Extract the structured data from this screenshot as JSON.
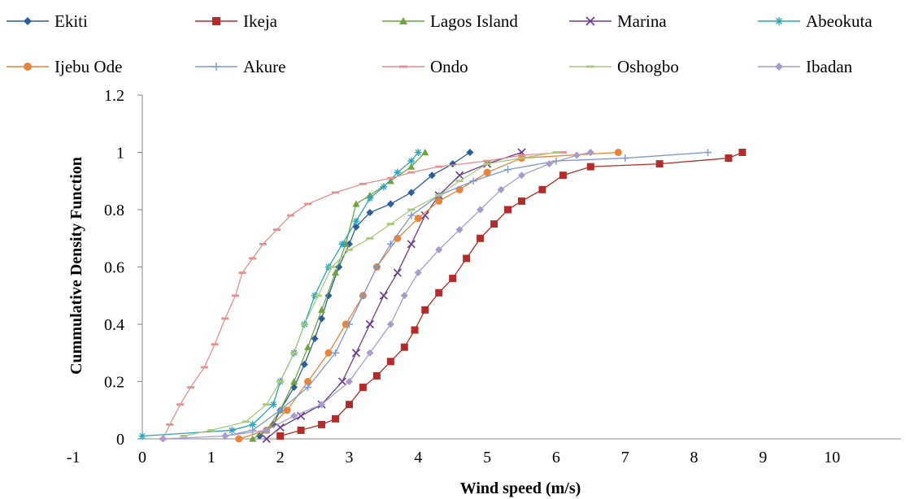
{
  "chart_data": {
    "type": "line",
    "title": "",
    "xlabel": "Wind speed (m/s)",
    "ylabel": "Cummulative Density Function",
    "xlim": [
      -1,
      10
    ],
    "ylim": [
      0,
      1.2
    ],
    "xticks": [
      "-1",
      "0",
      "1",
      "2",
      "3",
      "4",
      "5",
      "6",
      "7",
      "8",
      "9",
      "10"
    ],
    "yticks": [
      "0",
      "0.2",
      "0.4",
      "0.6",
      "0.8",
      "1",
      "1.2"
    ],
    "legend_position": "top",
    "grid": false,
    "series": [
      {
        "name": "Ekiti",
        "color": "#2e5c9a",
        "marker": "diamond",
        "points": [
          [
            1.7,
            0.01
          ],
          [
            1.9,
            0.05
          ],
          [
            2.0,
            0.1
          ],
          [
            2.2,
            0.18
          ],
          [
            2.35,
            0.26
          ],
          [
            2.5,
            0.35
          ],
          [
            2.6,
            0.42
          ],
          [
            2.7,
            0.5
          ],
          [
            2.85,
            0.6
          ],
          [
            3.0,
            0.68
          ],
          [
            3.1,
            0.74
          ],
          [
            3.3,
            0.79
          ],
          [
            3.6,
            0.82
          ],
          [
            3.9,
            0.86
          ],
          [
            4.2,
            0.92
          ],
          [
            4.5,
            0.96
          ],
          [
            4.75,
            1.0
          ]
        ]
      },
      {
        "name": "Ikeja",
        "color": "#b22c2c",
        "marker": "square",
        "points": [
          [
            2.0,
            0.01
          ],
          [
            2.3,
            0.03
          ],
          [
            2.6,
            0.05
          ],
          [
            2.8,
            0.07
          ],
          [
            3.0,
            0.12
          ],
          [
            3.2,
            0.18
          ],
          [
            3.4,
            0.22
          ],
          [
            3.6,
            0.27
          ],
          [
            3.8,
            0.32
          ],
          [
            3.95,
            0.38
          ],
          [
            4.1,
            0.45
          ],
          [
            4.3,
            0.51
          ],
          [
            4.5,
            0.56
          ],
          [
            4.7,
            0.63
          ],
          [
            4.9,
            0.7
          ],
          [
            5.1,
            0.75
          ],
          [
            5.3,
            0.8
          ],
          [
            5.5,
            0.83
          ],
          [
            5.8,
            0.87
          ],
          [
            6.1,
            0.92
          ],
          [
            6.5,
            0.95
          ],
          [
            7.5,
            0.96
          ],
          [
            8.5,
            0.98
          ],
          [
            8.7,
            1.0
          ]
        ]
      },
      {
        "name": "Lagos Island",
        "color": "#6ea33f",
        "marker": "triangle",
        "points": [
          [
            1.6,
            0.0
          ],
          [
            1.8,
            0.03
          ],
          [
            2.0,
            0.1
          ],
          [
            2.2,
            0.2
          ],
          [
            2.4,
            0.32
          ],
          [
            2.6,
            0.45
          ],
          [
            2.8,
            0.58
          ],
          [
            2.95,
            0.68
          ],
          [
            3.1,
            0.82
          ],
          [
            3.3,
            0.85
          ],
          [
            3.6,
            0.9
          ],
          [
            3.9,
            0.95
          ],
          [
            4.1,
            1.0
          ]
        ]
      },
      {
        "name": "Marina",
        "color": "#6a3d8a",
        "marker": "cross",
        "points": [
          [
            1.8,
            0.0
          ],
          [
            2.0,
            0.04
          ],
          [
            2.3,
            0.08
          ],
          [
            2.6,
            0.12
          ],
          [
            2.9,
            0.2
          ],
          [
            3.1,
            0.3
          ],
          [
            3.3,
            0.4
          ],
          [
            3.5,
            0.5
          ],
          [
            3.7,
            0.58
          ],
          [
            3.9,
            0.68
          ],
          [
            4.1,
            0.78
          ],
          [
            4.3,
            0.85
          ],
          [
            4.6,
            0.92
          ],
          [
            5.0,
            0.96
          ],
          [
            5.5,
            1.0
          ]
        ]
      },
      {
        "name": "Abeokuta",
        "color": "#2aa3b8",
        "marker": "asterisk",
        "points": [
          [
            0.0,
            0.01
          ],
          [
            1.3,
            0.03
          ],
          [
            1.6,
            0.05
          ],
          [
            1.9,
            0.12
          ],
          [
            2.0,
            0.2
          ],
          [
            2.2,
            0.3
          ],
          [
            2.35,
            0.4
          ],
          [
            2.5,
            0.5
          ],
          [
            2.7,
            0.6
          ],
          [
            2.9,
            0.68
          ],
          [
            3.1,
            0.76
          ],
          [
            3.3,
            0.84
          ],
          [
            3.5,
            0.88
          ],
          [
            3.7,
            0.93
          ],
          [
            3.9,
            0.97
          ],
          [
            4.0,
            1.0
          ]
        ]
      },
      {
        "name": "Ijebu Ode",
        "color": "#e8843a",
        "marker": "circle",
        "points": [
          [
            1.4,
            0.0
          ],
          [
            1.8,
            0.03
          ],
          [
            2.1,
            0.1
          ],
          [
            2.4,
            0.2
          ],
          [
            2.7,
            0.3
          ],
          [
            2.95,
            0.4
          ],
          [
            3.2,
            0.5
          ],
          [
            3.4,
            0.6
          ],
          [
            3.7,
            0.7
          ],
          [
            4.0,
            0.77
          ],
          [
            4.3,
            0.83
          ],
          [
            4.6,
            0.87
          ],
          [
            5.0,
            0.93
          ],
          [
            5.5,
            0.98
          ],
          [
            6.9,
            1.0
          ]
        ]
      },
      {
        "name": "Akure",
        "color": "#7d98c9",
        "marker": "plus",
        "points": [
          [
            1.2,
            0.01
          ],
          [
            1.6,
            0.03
          ],
          [
            2.0,
            0.1
          ],
          [
            2.4,
            0.18
          ],
          [
            2.8,
            0.3
          ],
          [
            3.0,
            0.4
          ],
          [
            3.2,
            0.5
          ],
          [
            3.4,
            0.6
          ],
          [
            3.6,
            0.68
          ],
          [
            3.9,
            0.78
          ],
          [
            4.3,
            0.85
          ],
          [
            4.8,
            0.9
          ],
          [
            5.3,
            0.94
          ],
          [
            6.0,
            0.97
          ],
          [
            7.0,
            0.98
          ],
          [
            8.2,
            1.0
          ]
        ]
      },
      {
        "name": "Ondo",
        "color": "#e3908e",
        "marker": "dash",
        "points": [
          [
            0.3,
            0.0
          ],
          [
            0.4,
            0.05
          ],
          [
            0.55,
            0.12
          ],
          [
            0.7,
            0.18
          ],
          [
            0.9,
            0.25
          ],
          [
            1.05,
            0.33
          ],
          [
            1.2,
            0.42
          ],
          [
            1.35,
            0.5
          ],
          [
            1.45,
            0.58
          ],
          [
            1.6,
            0.63
          ],
          [
            1.75,
            0.68
          ],
          [
            1.95,
            0.73
          ],
          [
            2.15,
            0.78
          ],
          [
            2.4,
            0.82
          ],
          [
            2.8,
            0.86
          ],
          [
            3.2,
            0.89
          ],
          [
            3.6,
            0.91
          ],
          [
            3.9,
            0.93
          ],
          [
            4.3,
            0.95
          ],
          [
            5.0,
            0.97
          ],
          [
            5.5,
            0.99
          ],
          [
            6.1,
            1.0
          ]
        ]
      },
      {
        "name": "Oshogbo",
        "color": "#a8c97e",
        "marker": "dash",
        "points": [
          [
            0.6,
            0.01
          ],
          [
            1.0,
            0.03
          ],
          [
            1.5,
            0.06
          ],
          [
            1.8,
            0.12
          ],
          [
            2.0,
            0.2
          ],
          [
            2.2,
            0.3
          ],
          [
            2.35,
            0.4
          ],
          [
            2.55,
            0.5
          ],
          [
            2.75,
            0.6
          ],
          [
            3.0,
            0.66
          ],
          [
            3.3,
            0.7
          ],
          [
            3.6,
            0.75
          ],
          [
            3.9,
            0.8
          ],
          [
            4.3,
            0.85
          ],
          [
            4.6,
            0.9
          ],
          [
            5.0,
            0.96
          ],
          [
            5.5,
            0.98
          ],
          [
            6.0,
            1.0
          ]
        ]
      },
      {
        "name": "Ibadan",
        "color": "#a99bc9",
        "marker": "diamond",
        "points": [
          [
            0.3,
            0.0
          ],
          [
            1.2,
            0.01
          ],
          [
            1.8,
            0.03
          ],
          [
            2.2,
            0.08
          ],
          [
            2.6,
            0.12
          ],
          [
            3.0,
            0.2
          ],
          [
            3.3,
            0.3
          ],
          [
            3.6,
            0.4
          ],
          [
            3.8,
            0.5
          ],
          [
            4.0,
            0.58
          ],
          [
            4.3,
            0.66
          ],
          [
            4.6,
            0.73
          ],
          [
            4.9,
            0.8
          ],
          [
            5.2,
            0.87
          ],
          [
            5.5,
            0.92
          ],
          [
            5.9,
            0.96
          ],
          [
            6.3,
            0.99
          ],
          [
            6.5,
            1.0
          ]
        ]
      }
    ]
  }
}
